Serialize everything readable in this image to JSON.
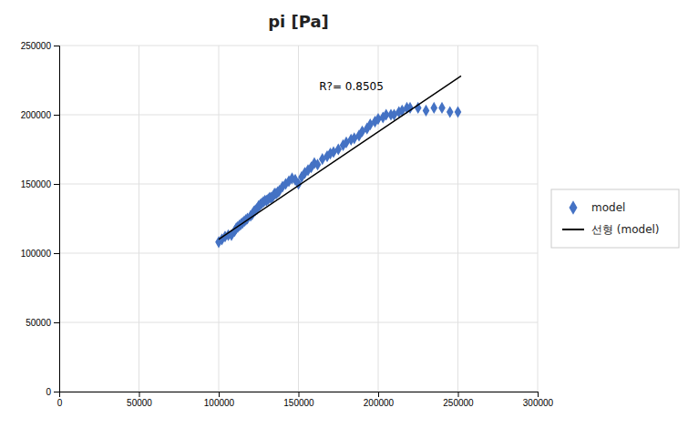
{
  "chart_data": {
    "type": "scatter",
    "title": "pi [Pa]",
    "series": [
      {
        "name": "model",
        "type": "scatter",
        "color": "#4472C4",
        "marker": "diamond",
        "x": [
          100000,
          102000,
          104000,
          106000,
          108000,
          110000,
          111000,
          112000,
          113000,
          114000,
          115000,
          116000,
          117000,
          118000,
          120000,
          121000,
          122000,
          123000,
          124000,
          125000,
          126000,
          127000,
          128000,
          129000,
          130000,
          131000,
          132000,
          133000,
          134000,
          135000,
          136000,
          137000,
          138000,
          140000,
          142000,
          144000,
          146000,
          148000,
          150000,
          152000,
          154000,
          156000,
          158000,
          160000,
          162000,
          165000,
          168000,
          170000,
          172000,
          175000,
          178000,
          180000,
          183000,
          185000,
          188000,
          190000,
          193000,
          195000,
          198000,
          200000,
          203000,
          205000,
          208000,
          210000,
          213000,
          215000,
          218000,
          220000,
          225000,
          230000,
          235000,
          240000,
          245000,
          250000
        ],
        "values": [
          108000,
          110000,
          112000,
          113000,
          113000,
          116000,
          118000,
          119000,
          120000,
          121000,
          122000,
          123000,
          124000,
          125000,
          127000,
          128000,
          130000,
          131000,
          132000,
          134000,
          135000,
          136000,
          137000,
          138000,
          138000,
          139000,
          140000,
          140000,
          141000,
          143000,
          143000,
          144000,
          145000,
          148000,
          150000,
          152000,
          154000,
          153000,
          150000,
          155000,
          158000,
          160000,
          162000,
          165000,
          164000,
          168000,
          170000,
          172000,
          173000,
          175000,
          178000,
          180000,
          182000,
          183000,
          185000,
          188000,
          190000,
          193000,
          195000,
          197000,
          198000,
          200000,
          200000,
          200000,
          202000,
          203000,
          205000,
          205000,
          205000,
          203000,
          205000,
          205000,
          202000,
          202000
        ]
      },
      {
        "name": "선형 (model)",
        "type": "line",
        "color": "#000000",
        "line_style": "solid",
        "x": [
          100000,
          252000
        ],
        "values": [
          110000,
          228000
        ]
      }
    ],
    "annotations": [
      {
        "text": "R?= 0.8505",
        "x": 163000,
        "y": 218000
      }
    ],
    "xlim": [
      0,
      300000
    ],
    "ylim": [
      0,
      250000
    ],
    "xticks": [
      0,
      50000,
      100000,
      150000,
      200000,
      250000,
      300000
    ],
    "yticks": [
      0,
      50000,
      100000,
      150000,
      200000,
      250000
    ],
    "grid": true,
    "legend": "right"
  }
}
